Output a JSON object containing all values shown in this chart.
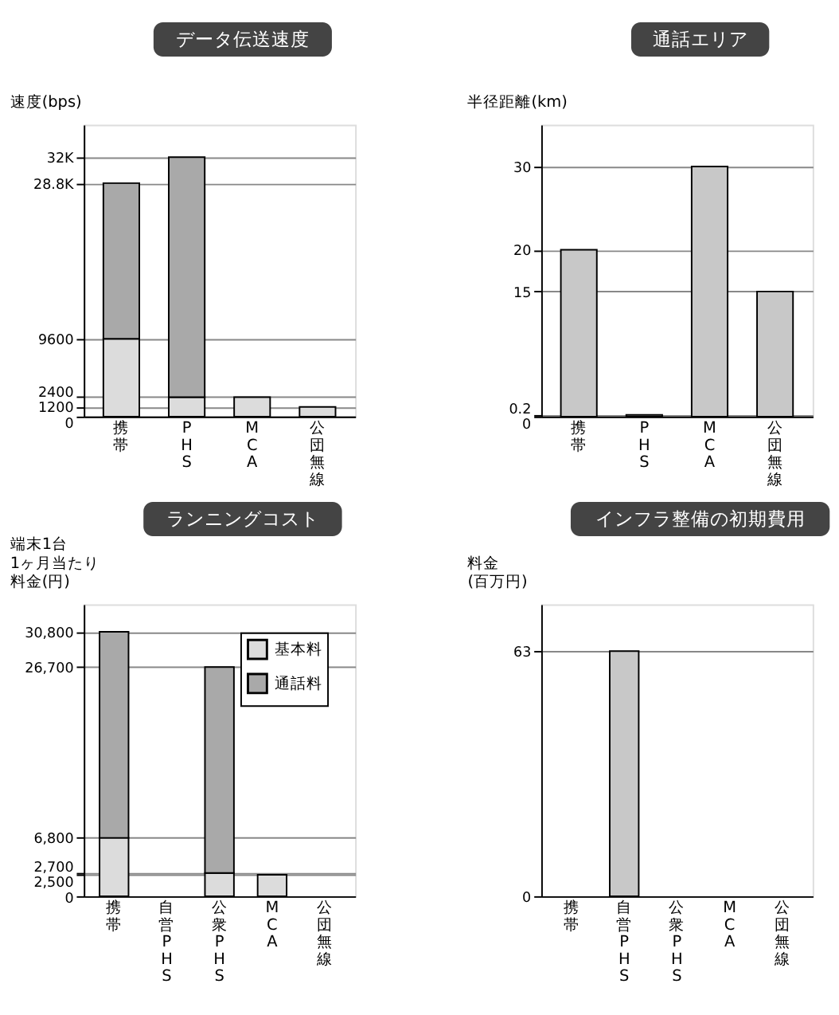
{
  "chart_data": [
    {
      "type": "bar",
      "title": "データ伝送速度",
      "ylabel": "速度(bps)",
      "categories": [
        "携帯",
        "PHS",
        "MCA",
        "公団無線"
      ],
      "stacked": true,
      "series": [
        {
          "color": "#dcdcdc",
          "values": [
            9600,
            2400,
            2400,
            1200
          ]
        },
        {
          "color": "#a9a9a9",
          "values": [
            19200,
            29600,
            null,
            null
          ]
        }
      ],
      "ylim": [
        0,
        36000
      ],
      "yticks": [
        0,
        1200,
        2400,
        9600,
        {
          "value": 28800,
          "label": "28.8K"
        },
        {
          "value": 32000,
          "label": "32K"
        }
      ],
      "grid": "y"
    },
    {
      "type": "bar",
      "title": "通話エリア",
      "ylabel": "半径距離(km)",
      "categories": [
        "携帯",
        "PHS",
        "MCA",
        "公団無線"
      ],
      "series": [
        {
          "color": "#c8c8c8",
          "values": [
            20,
            0.2,
            30,
            15
          ]
        }
      ],
      "ylim": [
        0,
        35
      ],
      "yticks": [
        0,
        0.2,
        15,
        20,
        30
      ],
      "grid": "y"
    },
    {
      "type": "bar",
      "title": "ランニングコスト",
      "ylabel": [
        "端末1台",
        "1ヶ月当たり",
        "料金(円)"
      ],
      "categories": [
        "携帯",
        "自営PHS",
        "公衆PHS",
        "MCA",
        "公団無線"
      ],
      "stacked": true,
      "series": [
        {
          "name": "基本料",
          "color": "#dcdcdc",
          "values": [
            6800,
            null,
            2700,
            2500,
            null
          ]
        },
        {
          "name": "通話料",
          "color": "#a9a9a9",
          "values": [
            24000,
            null,
            24000,
            null,
            null
          ]
        }
      ],
      "ylim": [
        0,
        34000
      ],
      "yticks": [
        0,
        {
          "value": 2500,
          "label": "2,500"
        },
        {
          "value": 2700,
          "label": "2,700"
        },
        {
          "value": 6800,
          "label": "6,800"
        },
        {
          "value": 26700,
          "label": "26,700"
        },
        {
          "value": 30800,
          "label": "30,800"
        }
      ],
      "grid": "y",
      "legend": "top right"
    },
    {
      "type": "bar",
      "title": "インフラ整備の初期費用",
      "ylabel": [
        "料金",
        "(百万円)"
      ],
      "categories": [
        "携帯",
        "自営PHS",
        "公衆PHS",
        "MCA",
        "公団無線"
      ],
      "series": [
        {
          "color": "#c8c8c8",
          "values": [
            null,
            63,
            null,
            null,
            null
          ]
        }
      ],
      "ylim": [
        0,
        75
      ],
      "yticks": [
        0,
        63
      ],
      "grid": "y"
    }
  ]
}
